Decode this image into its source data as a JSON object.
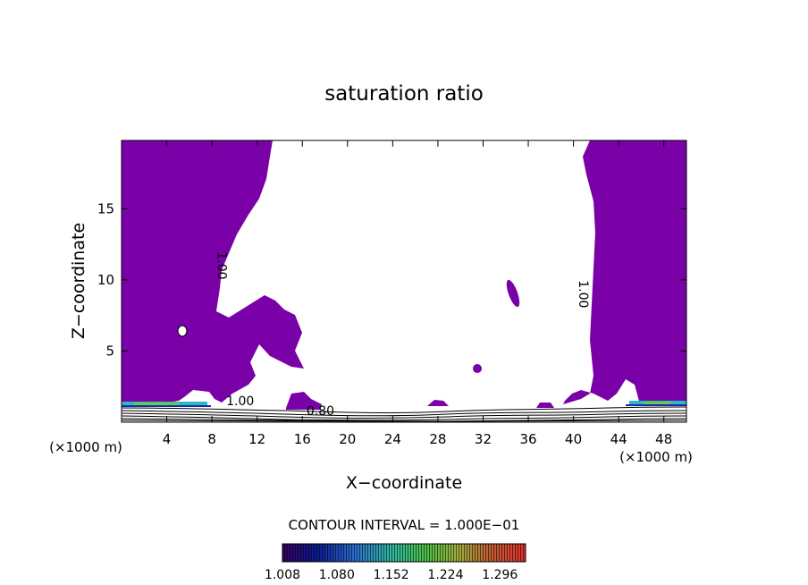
{
  "chart_data": {
    "type": "contour",
    "title": "saturation ratio",
    "xlabel": "X−coordinate",
    "ylabel": "Z−coordinate",
    "x_unit_left": "(×1000 m)",
    "x_unit_right": "(×1000 m)",
    "xlim": [
      0,
      50
    ],
    "ylim": [
      0,
      19.8
    ],
    "x_ticks": [
      4,
      8,
      12,
      16,
      20,
      24,
      28,
      32,
      36,
      40,
      44,
      48
    ],
    "y_ticks": [
      5,
      10,
      15
    ],
    "contour_labels": [
      {
        "text": "1.00",
        "x": 8.5,
        "y": 11
      },
      {
        "text": "1.00",
        "x": 40.5,
        "y": 9
      },
      {
        "text": "1.00",
        "x": 10.5,
        "y": 1.2
      },
      {
        "text": "0.80",
        "x": 17.6,
        "y": 0.5
      }
    ],
    "contour_interval_label": "CONTOUR INTERVAL = 1.000E−01",
    "colorbar": {
      "tick_labels": [
        "1.008",
        "1.080",
        "1.152",
        "1.224",
        "1.296"
      ],
      "min": 1.008,
      "max": 1.33
    },
    "fill_color": "#7a00a8"
  }
}
